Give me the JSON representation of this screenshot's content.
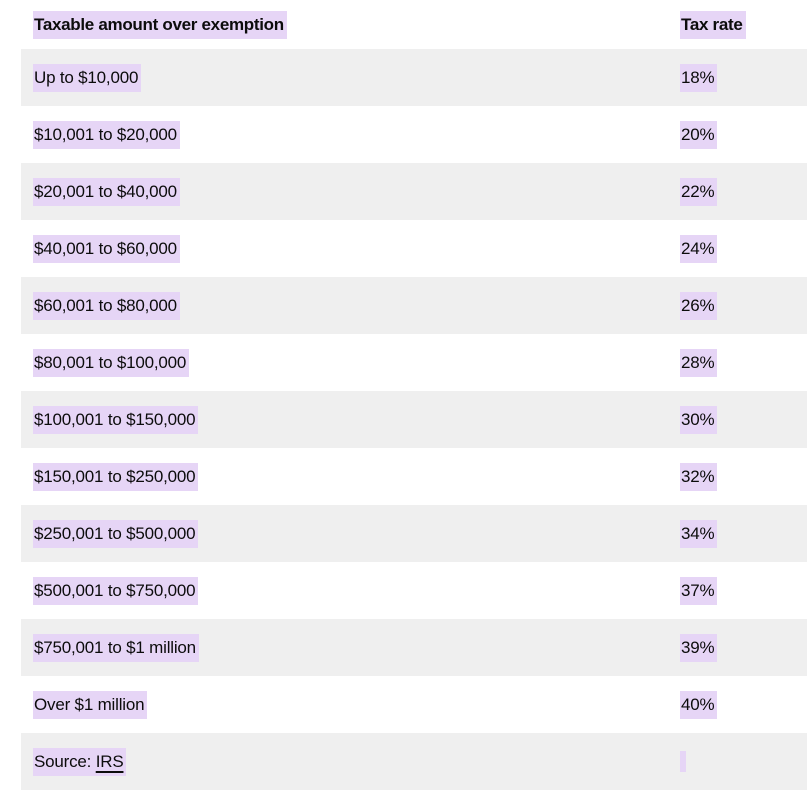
{
  "colors": {
    "selection_highlight": "#e6d5f6",
    "row_alternate_bg": "#efefef",
    "text": "#0c0c0c"
  },
  "table": {
    "header": {
      "col1": "Taxable amount over exemption",
      "col2": "Tax rate"
    },
    "rows": [
      {
        "range": "Up to $10,000",
        "rate": "18%"
      },
      {
        "range": "$10,001 to $20,000",
        "rate": "20%"
      },
      {
        "range": "$20,001 to $40,000",
        "rate": "22%"
      },
      {
        "range": "$40,001 to $60,000",
        "rate": "24%"
      },
      {
        "range": "$60,001 to $80,000",
        "rate": "26%"
      },
      {
        "range": "$80,001 to $100,000",
        "rate": "28%"
      },
      {
        "range": "$100,001 to $150,000",
        "rate": "30%"
      },
      {
        "range": "$150,001 to $250,000",
        "rate": "32%"
      },
      {
        "range": "$250,001 to $500,000",
        "rate": "34%"
      },
      {
        "range": "$500,001 to $750,000",
        "rate": "37%"
      },
      {
        "range": "$750,001 to $1 million",
        "rate": "39%"
      },
      {
        "range": "Over $1 million",
        "rate": "40%"
      }
    ],
    "source": {
      "prefix": "Source: ",
      "link": "IRS"
    }
  },
  "chart_data": {
    "type": "table",
    "title": "",
    "columns": [
      "Taxable amount over exemption",
      "Tax rate"
    ],
    "rows": [
      [
        "Up to $10,000",
        "18%"
      ],
      [
        "$10,001 to $20,000",
        "20%"
      ],
      [
        "$20,001 to $40,000",
        "22%"
      ],
      [
        "$40,001 to $60,000",
        "24%"
      ],
      [
        "$60,001 to $80,000",
        "26%"
      ],
      [
        "$80,001 to $100,000",
        "28%"
      ],
      [
        "$100,001 to $150,000",
        "30%"
      ],
      [
        "$150,001 to $250,000",
        "32%"
      ],
      [
        "$250,001 to $500,000",
        "34%"
      ],
      [
        "$500,001 to $750,000",
        "37%"
      ],
      [
        "$750,001 to $1 million",
        "39%"
      ],
      [
        "Over $1 million",
        "40%"
      ]
    ],
    "rates_numeric": [
      18,
      20,
      22,
      24,
      26,
      28,
      30,
      32,
      34,
      37,
      39,
      40
    ],
    "source": "Source: IRS",
    "layout_hints": "zebra-striped rows starting gray, all text shown with lavender selection highlight"
  }
}
